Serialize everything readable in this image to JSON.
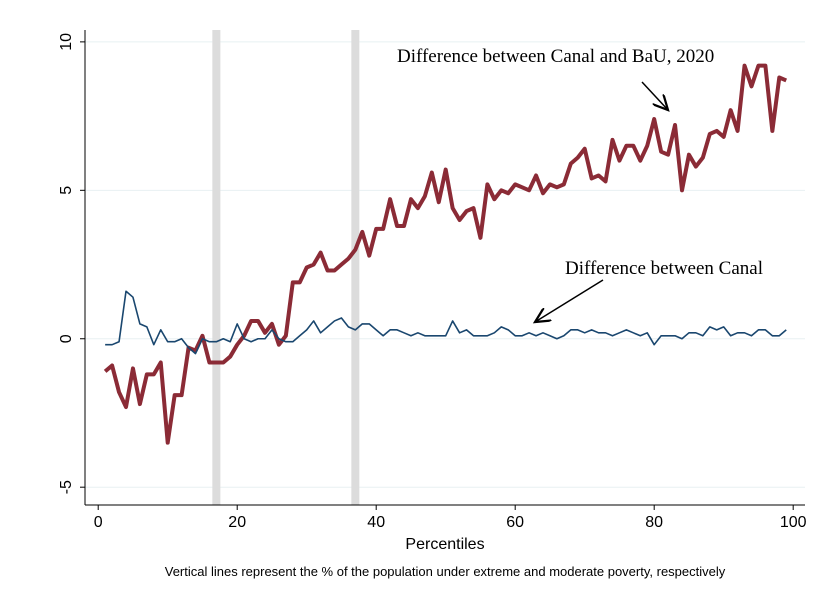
{
  "chart_data": {
    "type": "line",
    "x_label": "Percentiles",
    "note": "Vertical lines represent the % of the population under extreme and moderate poverty, respectively",
    "annotations": [
      "Difference between Canal and BaU, 2020",
      "Difference between Canal"
    ],
    "x": [
      1,
      2,
      3,
      4,
      5,
      6,
      7,
      8,
      9,
      10,
      11,
      12,
      13,
      14,
      15,
      16,
      17,
      18,
      19,
      20,
      21,
      22,
      23,
      24,
      25,
      26,
      27,
      28,
      29,
      30,
      31,
      32,
      33,
      34,
      35,
      36,
      37,
      38,
      39,
      40,
      41,
      42,
      43,
      44,
      45,
      46,
      47,
      48,
      49,
      50,
      51,
      52,
      53,
      54,
      55,
      56,
      57,
      58,
      59,
      60,
      61,
      62,
      63,
      64,
      65,
      66,
      67,
      68,
      69,
      70,
      71,
      72,
      73,
      74,
      75,
      76,
      77,
      78,
      79,
      80,
      81,
      82,
      83,
      84,
      85,
      86,
      87,
      88,
      89,
      90,
      91,
      92,
      93,
      94,
      95,
      96,
      97,
      98,
      99
    ],
    "series": [
      {
        "color": "#8b2b36",
        "width": 4,
        "values": [
          -1.1,
          -0.9,
          -1.8,
          -2.3,
          -1.0,
          -2.2,
          -1.2,
          -1.2,
          -0.8,
          -3.5,
          -1.9,
          -1.9,
          -0.3,
          -0.4,
          0.1,
          -0.8,
          -0.8,
          -0.8,
          -0.6,
          -0.2,
          0.1,
          0.6,
          0.6,
          0.2,
          0.5,
          -0.2,
          0.1,
          1.9,
          1.9,
          2.4,
          2.5,
          2.9,
          2.3,
          2.3,
          2.5,
          2.7,
          3.0,
          3.6,
          2.8,
          3.7,
          3.7,
          4.7,
          3.8,
          3.8,
          4.7,
          4.4,
          4.8,
          5.6,
          4.6,
          5.7,
          4.4,
          4.0,
          4.3,
          4.4,
          3.4,
          5.2,
          4.7,
          5.0,
          4.9,
          5.2,
          5.1,
          5.0,
          5.5,
          4.9,
          5.2,
          5.1,
          5.2,
          5.9,
          6.1,
          6.4,
          5.4,
          5.5,
          5.3,
          6.7,
          6.0,
          6.5,
          6.5,
          6.0,
          6.5,
          7.4,
          6.3,
          6.2,
          7.2,
          5.0,
          6.2,
          5.8,
          6.1,
          6.9,
          7.0,
          6.8,
          7.7,
          7.0,
          9.2,
          8.5,
          9.2,
          9.2,
          7.0,
          8.8,
          8.7
        ]
      },
      {
        "color": "#1a476f",
        "width": 1.6,
        "values": [
          -0.2,
          -0.2,
          -0.1,
          1.6,
          1.4,
          0.5,
          0.4,
          -0.2,
          0.3,
          -0.1,
          -0.1,
          0.0,
          -0.3,
          -0.5,
          0.0,
          -0.1,
          -0.1,
          0.0,
          -0.1,
          0.5,
          0.0,
          -0.1,
          0.0,
          0.0,
          0.3,
          0.0,
          -0.1,
          -0.1,
          0.1,
          0.3,
          0.6,
          0.2,
          0.4,
          0.6,
          0.7,
          0.4,
          0.3,
          0.5,
          0.5,
          0.3,
          0.1,
          0.3,
          0.3,
          0.2,
          0.1,
          0.2,
          0.1,
          0.1,
          0.1,
          0.1,
          0.6,
          0.2,
          0.3,
          0.1,
          0.1,
          0.1,
          0.2,
          0.4,
          0.3,
          0.1,
          0.1,
          0.2,
          0.1,
          0.2,
          0.1,
          0.0,
          0.1,
          0.3,
          0.3,
          0.2,
          0.3,
          0.2,
          0.2,
          0.1,
          0.2,
          0.3,
          0.2,
          0.1,
          0.2,
          -0.2,
          0.1,
          0.1,
          0.1,
          0.0,
          0.2,
          0.2,
          0.1,
          0.4,
          0.3,
          0.4,
          0.1,
          0.2,
          0.2,
          0.1,
          0.3,
          0.3,
          0.1,
          0.1,
          0.3
        ]
      }
    ],
    "vlines": [
      17,
      37
    ],
    "vline_color": "#dcdcdc",
    "xlim": [
      -1.9,
      101.7
    ],
    "xticks": [
      0,
      20,
      40,
      60,
      80,
      100
    ],
    "ylim": [
      -5.6,
      10.4
    ],
    "yticks": [
      -5,
      0,
      5,
      10
    ],
    "grid": true,
    "grid_color": "#e8f0f2"
  }
}
